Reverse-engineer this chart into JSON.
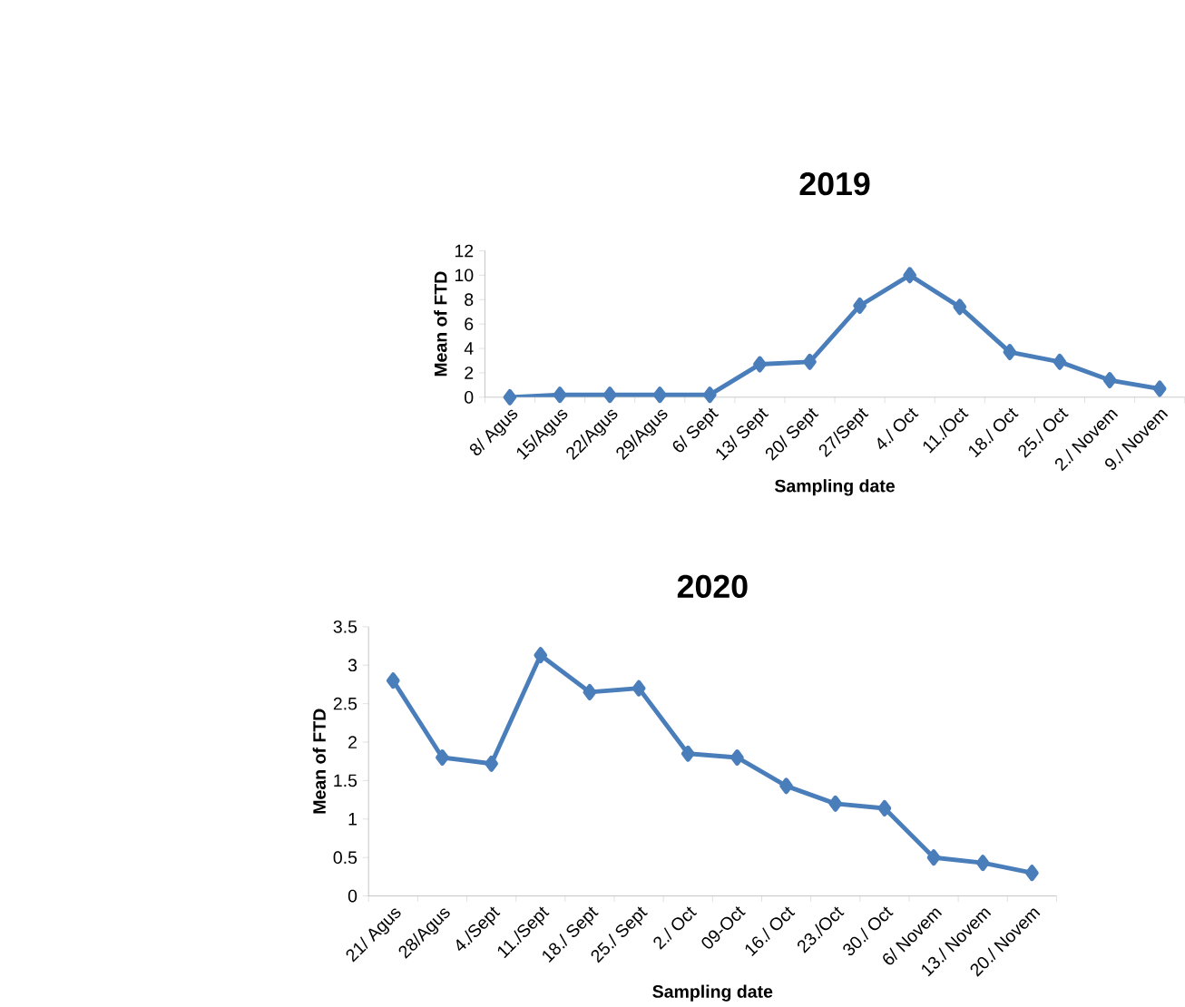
{
  "chart_data": [
    {
      "type": "line",
      "title": "2019",
      "xlabel": "Sampling date",
      "ylabel": "Mean of FTD",
      "categories": [
        "8/ Agus",
        "15/Agus",
        "22/Agus",
        "29/Agus",
        "6/ Sept",
        "13/ Sept",
        "20/ Sept",
        "27/Sept",
        "4./ Oct",
        "11./Oct",
        "18./ Oct",
        "25./ Oct",
        "2./ Novem",
        "9./ Novem"
      ],
      "values": [
        0,
        0.2,
        0.2,
        0.2,
        0.2,
        2.7,
        2.9,
        7.5,
        10,
        7.4,
        3.7,
        2.9,
        1.4,
        0.7
      ],
      "color": "#4a7ebb",
      "marker": "diamond",
      "ylim": [
        0,
        12
      ],
      "yticks": [
        0,
        2,
        4,
        6,
        8,
        10,
        12
      ]
    },
    {
      "type": "line",
      "title": "2020",
      "xlabel": "Sampling date",
      "ylabel": "Mean of FTD",
      "categories": [
        "21/ Agus",
        "28/Agus",
        "4./Sept",
        "11./Sept",
        "18./ Sept",
        "25./ Sept",
        "2./ Oct",
        "09-Oct",
        "16./ Oct",
        "23./Oct",
        "30./ Oct",
        "6/ Novem",
        "13./ Novem",
        "20./ Novem"
      ],
      "values": [
        2.8,
        1.8,
        1.72,
        3.13,
        2.65,
        2.7,
        1.85,
        1.8,
        1.43,
        1.2,
        1.14,
        0.5,
        0.43,
        0.3
      ],
      "color": "#4a7ebb",
      "marker": "diamond",
      "ylim": [
        0,
        3.5
      ],
      "yticks": [
        0,
        0.5,
        1,
        1.5,
        2,
        2.5,
        3,
        3.5
      ]
    }
  ]
}
